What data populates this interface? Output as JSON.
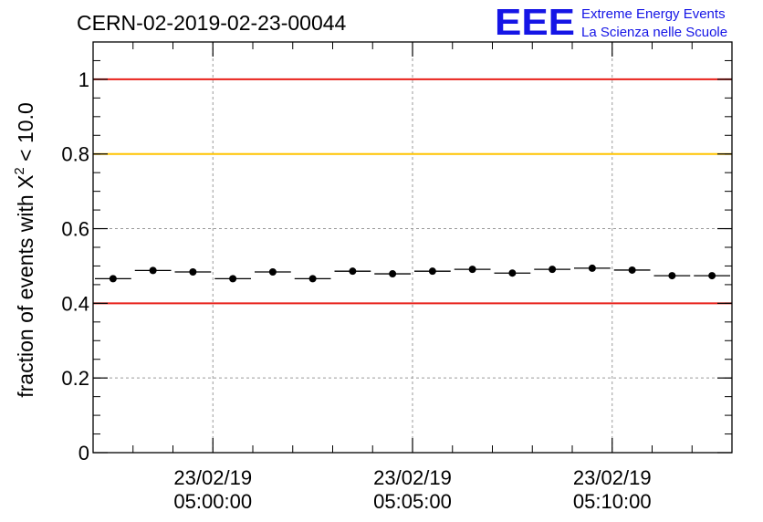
{
  "header": {
    "run_title": "CERN-02-2019-02-23-00044",
    "logo_text": "EEE",
    "logo_line1": "Extreme Energy Events",
    "logo_line2": "La Scienza nelle Scuole"
  },
  "chart_data": {
    "type": "scatter",
    "title": "CERN-02-2019-02-23-00044",
    "ylabel_prefix": "fraction of events with ",
    "ylabel_symbol": "X",
    "ylabel_superscript": "2",
    "ylabel_suffix": " < 10.0",
    "xlabel": "",
    "ylim": [
      0,
      1.1
    ],
    "y_ticks": [
      {
        "value": 0,
        "label": "0"
      },
      {
        "value": 0.2,
        "label": "0.2"
      },
      {
        "value": 0.4,
        "label": "0.4"
      },
      {
        "value": 0.6,
        "label": "0.6"
      },
      {
        "value": 0.8,
        "label": "0.8"
      },
      {
        "value": 1.0,
        "label": "1"
      }
    ],
    "xlim_minutes": [
      -3.0,
      13.0
    ],
    "x_ticks": [
      {
        "minute": 0,
        "date": "23/02/19",
        "time": "05:00:00"
      },
      {
        "minute": 5,
        "date": "23/02/19",
        "time": "05:05:00"
      },
      {
        "minute": 10,
        "date": "23/02/19",
        "time": "05:10:00"
      }
    ],
    "x_minor_step_minutes": 1,
    "grid": true,
    "reference_lines": [
      {
        "value": 1.0,
        "color": "#e8201a"
      },
      {
        "value": 0.8,
        "color": "#ffc400"
      },
      {
        "value": 0.4,
        "color": "#e8201a"
      }
    ],
    "bin_width_minutes": 1,
    "points": [
      {
        "x": -2.5,
        "y": 0.466
      },
      {
        "x": -1.5,
        "y": 0.488
      },
      {
        "x": -0.5,
        "y": 0.484
      },
      {
        "x": 0.5,
        "y": 0.466
      },
      {
        "x": 1.5,
        "y": 0.484
      },
      {
        "x": 2.5,
        "y": 0.466
      },
      {
        "x": 3.5,
        "y": 0.486
      },
      {
        "x": 4.5,
        "y": 0.479
      },
      {
        "x": 5.5,
        "y": 0.486
      },
      {
        "x": 6.5,
        "y": 0.491
      },
      {
        "x": 7.5,
        "y": 0.481
      },
      {
        "x": 8.5,
        "y": 0.491
      },
      {
        "x": 9.5,
        "y": 0.494
      },
      {
        "x": 10.5,
        "y": 0.489
      },
      {
        "x": 11.5,
        "y": 0.474
      },
      {
        "x": 12.5,
        "y": 0.474
      }
    ],
    "colors": {
      "marker": "#000000",
      "grid": "#9a9a9a",
      "logo": "#1515e6"
    }
  }
}
